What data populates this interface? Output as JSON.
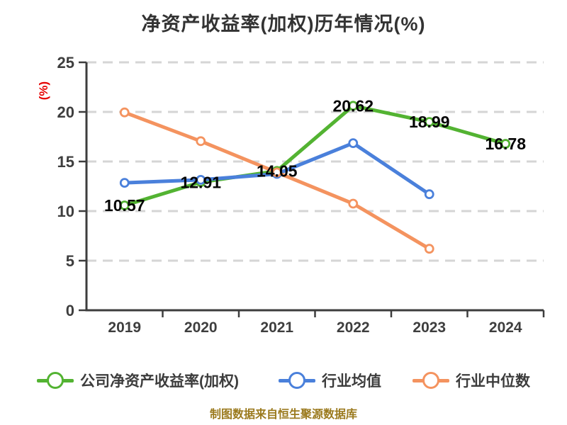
{
  "title": "净资产收益率(加权)历年情况(%)",
  "source_note": "制图数据来自恒生聚源数据库",
  "colors": {
    "background": "#ffffff",
    "title_text": "#333333",
    "axis": "#3d3d3d",
    "tick_label": "#3e3e3e",
    "gridline": "#d5d5d5",
    "data_label": "#050505",
    "y_unit_label": "#e60000",
    "source_note_text": "#9b7a1e",
    "company_series": "#53b332",
    "industry_mean_series": "#4a80db",
    "industry_median_series": "#f4935f",
    "marker_fill": "#ffffff"
  },
  "chart_data": {
    "type": "line",
    "title": "净资产收益率(加权)历年情况(%)",
    "categories": [
      "2019",
      "2020",
      "2021",
      "2022",
      "2023",
      "2024"
    ],
    "xlabel": "",
    "ylabel": "(%)",
    "ylim": [
      0,
      25
    ],
    "ytick_step": 5,
    "yticks": [
      0,
      5,
      10,
      15,
      20,
      25
    ],
    "grid": "horizontal-dashed",
    "legend_position": "bottom",
    "series": [
      {
        "name": "公司净资产收益率(加权)",
        "color": "#53b332",
        "values": [
          10.57,
          12.91,
          14.05,
          20.62,
          18.99,
          16.78
        ],
        "labels": [
          "10.57",
          "12.91",
          "14.05",
          "20.62",
          "18.99",
          "16.78"
        ],
        "show_labels": true
      },
      {
        "name": "行业均值",
        "color": "#4a80db",
        "values": [
          12.85,
          13.15,
          13.75,
          16.85,
          11.7,
          null
        ],
        "show_labels": false
      },
      {
        "name": "行业中位数",
        "color": "#f4935f",
        "values": [
          19.95,
          17.05,
          13.9,
          10.75,
          6.2,
          null
        ],
        "show_labels": false
      }
    ]
  }
}
